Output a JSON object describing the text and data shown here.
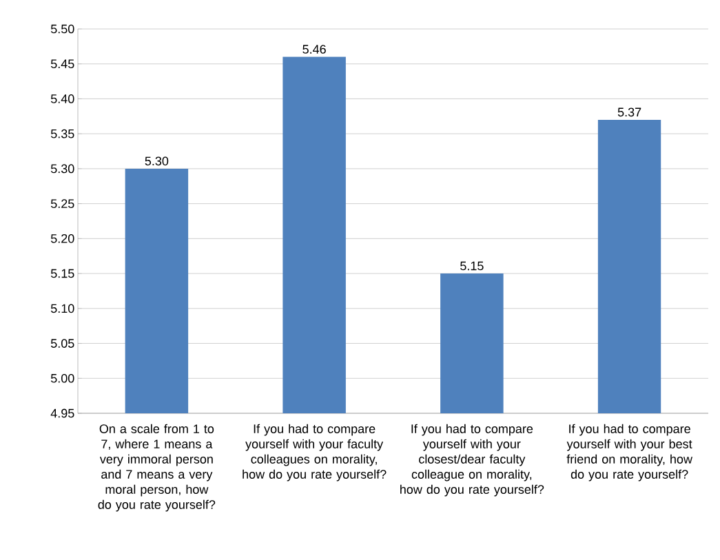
{
  "chart_data": {
    "type": "bar",
    "categories": [
      "On a scale from 1 to 7, where 1 means a very immoral person and 7 means a very moral person, how do you rate yourself?",
      "If you had to compare yourself with your faculty colleagues on morality, how  do you rate yourself?",
      "If you had to compare yourself with your closest/dear faculty colleague on morality, how  do you rate yourself?",
      "If you had to compare yourself with your best friend on morality, how  do you rate yourself?"
    ],
    "values": [
      5.3,
      5.46,
      5.15,
      5.37
    ],
    "value_labels": [
      "5.30",
      "5.46",
      "5.15",
      "5.37"
    ],
    "color": "#4f81bd",
    "ylim": [
      4.95,
      5.5
    ],
    "yticks": [
      {
        "value": 4.95,
        "label": "4.95"
      },
      {
        "value": 5.0,
        "label": "5.00"
      },
      {
        "value": 5.05,
        "label": "5.05"
      },
      {
        "value": 5.1,
        "label": "5.10"
      },
      {
        "value": 5.15,
        "label": "5.15"
      },
      {
        "value": 5.2,
        "label": "5.20"
      },
      {
        "value": 5.25,
        "label": "5.25"
      },
      {
        "value": 5.3,
        "label": "5.30"
      },
      {
        "value": 5.35,
        "label": "5.35"
      },
      {
        "value": 5.4,
        "label": "5.40"
      },
      {
        "value": 5.45,
        "label": "5.45"
      },
      {
        "value": 5.5,
        "label": "5.50"
      }
    ],
    "grid": "y"
  }
}
